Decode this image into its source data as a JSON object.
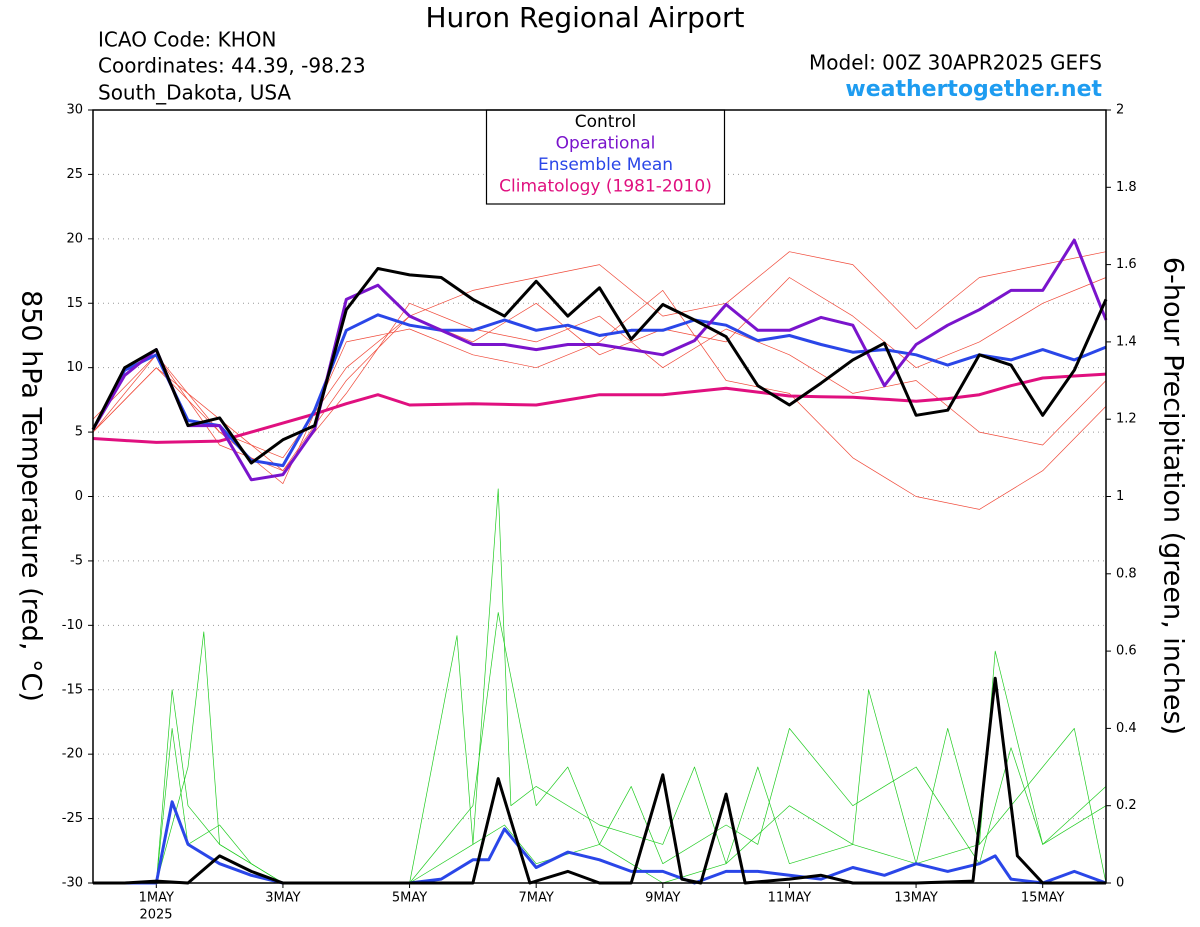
{
  "chart_data": {
    "type": "line",
    "title": "Huron Regional Airport",
    "station_info": [
      "ICAO Code: KHON",
      "Coordinates: 44.39, -98.23",
      "South_Dakota, USA"
    ],
    "model": "Model: 00Z 30APR2025 GEFS",
    "source": "weathertogether.net",
    "y_label": "850 hPa Temperature (red, °C)",
    "y2_label": "6-hour Precipitation (green, inches)",
    "x_year_label": "2025",
    "xlim": [
      0,
      16
    ],
    "xticks": [
      {
        "value": 1,
        "label": "1MAY"
      },
      {
        "value": 3,
        "label": "3MAY"
      },
      {
        "value": 5,
        "label": "5MAY"
      },
      {
        "value": 7,
        "label": "7MAY"
      },
      {
        "value": 9,
        "label": "9MAY"
      },
      {
        "value": 11,
        "label": "11MAY"
      },
      {
        "value": 13,
        "label": "13MAY"
      },
      {
        "value": 15,
        "label": "15MAY"
      }
    ],
    "ylim": [
      -30,
      30
    ],
    "yticks": [
      30,
      25,
      20,
      15,
      10,
      5,
      0,
      -5,
      -10,
      -15,
      -20,
      -25,
      -30
    ],
    "y2lim": [
      0,
      2
    ],
    "y2ticks": [
      2,
      1.8,
      1.6,
      1.4,
      1.2,
      1,
      0.8,
      0.6,
      0.4,
      0.2,
      0
    ],
    "grid": true,
    "legend": "top-center",
    "x": [
      0,
      0.5,
      1,
      1.5,
      2,
      2.5,
      3,
      3.5,
      4,
      4.5,
      5,
      5.5,
      6,
      6.5,
      7,
      7.5,
      8,
      8.5,
      9,
      9.5,
      10,
      10.5,
      11,
      11.5,
      12,
      12.5,
      13,
      13.5,
      14,
      14.5,
      15,
      15.5,
      16
    ],
    "members": [
      {
        "color": "#f04a3a",
        "x": [
          0,
          1,
          2,
          3,
          4,
          5,
          6,
          7,
          8,
          9,
          10,
          11,
          12,
          13,
          14,
          15,
          16
        ],
        "values": [
          5,
          10,
          6,
          2,
          8,
          15,
          13,
          12,
          14,
          10,
          13,
          11,
          8,
          9,
          5,
          4,
          9
        ]
      },
      {
        "color": "#f04a3a",
        "x": [
          0,
          1,
          2,
          3,
          4,
          5,
          6,
          7,
          8,
          9,
          10,
          11,
          12,
          13,
          14,
          15,
          16
        ],
        "values": [
          6,
          11,
          5,
          3,
          10,
          14,
          12,
          15,
          11,
          13,
          12,
          17,
          14,
          10,
          12,
          15,
          17
        ]
      },
      {
        "color": "#f04a3a",
        "x": [
          0,
          1,
          2,
          3,
          4,
          5,
          6,
          7,
          8,
          9,
          10,
          11,
          12,
          13,
          14,
          15,
          16
        ],
        "values": [
          5,
          10,
          5,
          1,
          12,
          13,
          11,
          10,
          12,
          16,
          9,
          8,
          3,
          0,
          -1,
          2,
          7
        ]
      },
      {
        "color": "#f04a3a",
        "x": [
          0,
          1,
          2,
          3,
          4,
          5,
          6,
          7,
          8,
          9,
          10,
          11,
          12,
          13,
          14,
          15,
          16
        ],
        "values": [
          5,
          11,
          4,
          2,
          9,
          14,
          16,
          17,
          18,
          14,
          15,
          19,
          18,
          13,
          17,
          18,
          19
        ]
      },
      {
        "color": "#22cc22",
        "axis": "y2",
        "x": [
          0,
          1,
          1.25,
          1.5,
          2,
          3,
          5,
          5.75,
          6,
          6.5,
          7,
          8,
          9,
          10,
          10.5,
          11,
          12,
          12.25,
          13,
          14,
          14.25,
          15,
          16
        ],
        "values": [
          0,
          0,
          0.5,
          0.2,
          0.1,
          0,
          0,
          0.64,
          0.1,
          0.15,
          0.05,
          0.1,
          0,
          0.05,
          0.3,
          0.05,
          0.1,
          0.5,
          0.05,
          0.1,
          0.6,
          0.1,
          0.2
        ]
      },
      {
        "color": "#22cc22",
        "axis": "y2",
        "x": [
          0,
          1,
          1.5,
          1.75,
          2,
          3,
          5,
          6,
          6.4,
          6.6,
          7,
          8,
          9,
          9.5,
          10,
          11,
          12,
          13,
          13.5,
          14,
          15,
          15.5,
          16
        ],
        "values": [
          0,
          0,
          0.3,
          0.65,
          0.1,
          0,
          0,
          0.1,
          1.02,
          0.2,
          0.25,
          0.15,
          0.1,
          0.3,
          0.05,
          0.2,
          0.1,
          0.05,
          0.4,
          0.1,
          0.3,
          0.4,
          0
        ]
      },
      {
        "color": "#22cc22",
        "axis": "y2",
        "x": [
          0,
          1,
          1.25,
          1.5,
          2,
          2.5,
          3,
          5,
          5.5,
          6,
          6.4,
          7,
          7.5,
          8,
          8.5,
          9,
          10,
          10.5,
          11,
          12,
          13,
          14,
          14.5,
          15,
          16
        ],
        "values": [
          0,
          0,
          0.4,
          0.1,
          0.15,
          0.05,
          0,
          0,
          0.1,
          0.2,
          0.7,
          0.2,
          0.3,
          0.1,
          0.25,
          0.05,
          0.15,
          0.1,
          0.4,
          0.2,
          0.3,
          0.05,
          0.35,
          0.1,
          0.25
        ]
      }
    ],
    "series": [
      {
        "name": "Climatology (1981-2010)",
        "color": "#e0107f",
        "values": [
          4.5,
          4.35,
          4.2,
          4.25,
          4.3,
          5.0,
          5.7,
          6.4,
          7.2,
          7.9,
          7.1,
          7.15,
          7.2,
          7.15,
          7.1,
          7.5,
          7.9,
          7.9,
          7.9,
          8.15,
          8.4,
          8.1,
          7.8,
          7.75,
          7.7,
          7.55,
          7.4,
          7.6,
          7.9,
          8.6,
          9.2,
          9.35,
          9.5
        ]
      },
      {
        "name": "Ensemble Mean",
        "color": "#2a46e8",
        "values": [
          5.2,
          9.8,
          11,
          5.9,
          5.5,
          2.8,
          2.4,
          6.7,
          12.9,
          14.1,
          13.3,
          12.9,
          12.9,
          13.7,
          12.9,
          13.3,
          12.5,
          12.9,
          12.9,
          13.7,
          13.3,
          12.1,
          12.5,
          11.8,
          11.2,
          11.4,
          11,
          10.2,
          11,
          10.6,
          11.4,
          10.6,
          11.6
        ]
      },
      {
        "name": "Operational",
        "color": "#7a14cc",
        "values": [
          5.2,
          9.4,
          11.4,
          5.5,
          5.5,
          1.3,
          1.7,
          5.2,
          15.3,
          16.4,
          14,
          12.9,
          11.8,
          11.8,
          11.4,
          11.8,
          11.8,
          11.4,
          11,
          12.1,
          14.9,
          12.9,
          12.9,
          13.9,
          13.3,
          8.6,
          11.8,
          13.3,
          14.5,
          16,
          16,
          19.9,
          13.7
        ]
      },
      {
        "name": "Control",
        "color": "#000000",
        "values": [
          5.2,
          10,
          11.4,
          5.5,
          6.1,
          2.6,
          4.4,
          5.5,
          14.5,
          17.7,
          17.2,
          17,
          15.3,
          14,
          16.7,
          14,
          16.2,
          12.2,
          14.9,
          13.7,
          12.4,
          8.6,
          7.1,
          8.8,
          10.6,
          11.9,
          6.3,
          6.7,
          11,
          10.2,
          6.3,
          9.8,
          15.3
        ]
      },
      {
        "color": "#2a46e8",
        "axis": "y2",
        "x": [
          0,
          1,
          1.25,
          1.5,
          2,
          2.5,
          3,
          4,
          5,
          5.5,
          6,
          6.25,
          6.5,
          7,
          7.5,
          8,
          8.5,
          9,
          9.5,
          10,
          10.5,
          11,
          11.5,
          12,
          12.5,
          13,
          13.5,
          14,
          14.25,
          14.5,
          15,
          15.5,
          16
        ],
        "values": [
          0,
          0,
          0.21,
          0.1,
          0.05,
          0.02,
          0,
          0,
          0,
          0.01,
          0.06,
          0.06,
          0.14,
          0.04,
          0.08,
          0.06,
          0.03,
          0.03,
          0,
          0.03,
          0.03,
          0.02,
          0.01,
          0.04,
          0.02,
          0.05,
          0.03,
          0.05,
          0.07,
          0.01,
          0,
          0.03,
          0
        ]
      },
      {
        "color": "#000000",
        "axis": "y2",
        "x": [
          0,
          0.5,
          1,
          1.5,
          2,
          2.5,
          3,
          4,
          5,
          5.5,
          6,
          6.4,
          6.9,
          7.5,
          8,
          8.5,
          9,
          9.3,
          9.6,
          10,
          10.3,
          11,
          11.5,
          12,
          13,
          13.9,
          14.25,
          14.6,
          15,
          16
        ],
        "values": [
          0,
          0,
          0.005,
          0,
          0.07,
          0.03,
          0,
          0,
          0,
          0,
          0,
          0.27,
          0,
          0.03,
          0,
          0,
          0.28,
          0.01,
          0,
          0.23,
          0,
          0.01,
          0.02,
          0,
          0,
          0.005,
          0.53,
          0.07,
          0,
          0
        ]
      }
    ]
  }
}
